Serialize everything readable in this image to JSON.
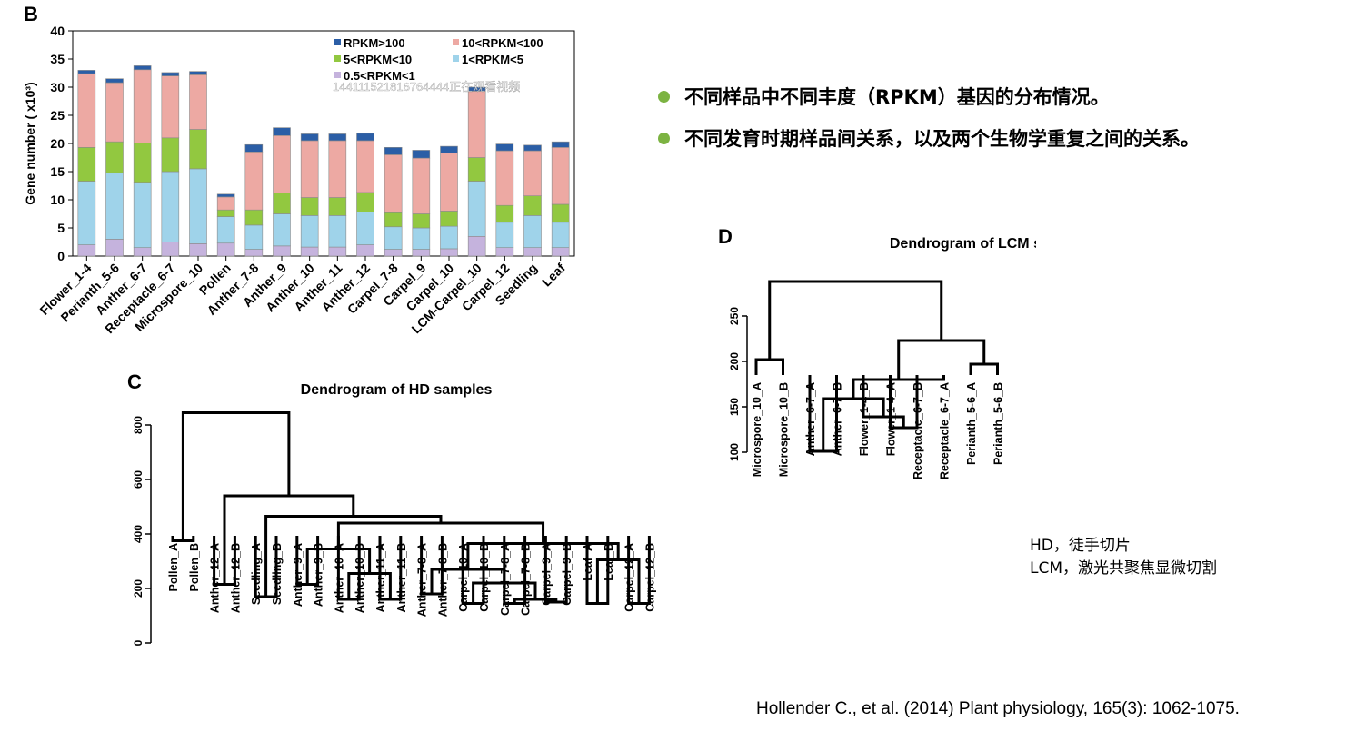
{
  "panels": {
    "b_label": "B",
    "c_label": "C",
    "d_label": "D"
  },
  "watermark": "144111521816764444正在观看视频",
  "bullets": {
    "color": "#7cb342",
    "items": [
      "不同样品中不同丰度（RPKM）基因的分布情况。",
      "不同发育时期样品间关系，以及两个生物学重复之间的关系。"
    ]
  },
  "notes": {
    "hd": "HD，徒手切片",
    "lcm": "LCM，激光共聚焦显微切割"
  },
  "citation": "Hollender C., et al. (2014) Plant physiology, 165(3): 1062-1075.",
  "chart_data": [
    {
      "type": "bar",
      "stacked": true,
      "ylabel": "Gene number ( x10³)",
      "ylim": [
        0,
        40
      ],
      "yticks": [
        0,
        5,
        10,
        15,
        20,
        25,
        30,
        35,
        40
      ],
      "categories": [
        "Flower_1-4",
        "Perianth_5-6",
        "Anther_6-7",
        "Receptacle_6-7",
        "Microspore_10",
        "Pollen",
        "Anther_7-8",
        "Anther_9",
        "Anther_10",
        "Anther_11",
        "Anther_12",
        "Carpel_7-8",
        "Carpel_9",
        "Carpel_10",
        "LCM-Carpel_10",
        "Carpel_12",
        "Seedling",
        "Leaf"
      ],
      "legend": [
        "RPKM>100",
        "10<RPKM<100",
        "5<RPKM<10",
        "1<RPKM<5",
        "0.5<RPKM<1"
      ],
      "series": [
        {
          "name": "0.5<RPKM<1",
          "color": "#c5b3dd",
          "values": [
            2.0,
            3.0,
            1.5,
            2.5,
            2.2,
            2.3,
            1.2,
            1.8,
            1.6,
            1.6,
            2.0,
            1.2,
            1.2,
            1.3,
            3.5,
            1.5,
            1.5,
            1.5
          ]
        },
        {
          "name": "1<RPKM<5",
          "color": "#9fd3ea",
          "values": [
            11.3,
            11.8,
            11.6,
            12.5,
            13.3,
            4.7,
            4.3,
            5.7,
            5.6,
            5.6,
            5.8,
            4.0,
            3.8,
            4.0,
            9.8,
            4.5,
            5.7,
            4.5
          ]
        },
        {
          "name": "5<RPKM<10",
          "color": "#92c840",
          "values": [
            6.0,
            5.5,
            7.0,
            6.0,
            7.0,
            1.2,
            2.7,
            3.7,
            3.2,
            3.2,
            3.5,
            2.5,
            2.5,
            2.7,
            4.2,
            3.0,
            3.5,
            3.2
          ]
        },
        {
          "name": "10<RPKM<100",
          "color": "#eda9a3",
          "values": [
            13.1,
            10.5,
            13.0,
            11.0,
            9.7,
            2.3,
            10.3,
            10.2,
            10.1,
            10.1,
            9.2,
            10.3,
            9.9,
            10.3,
            11.8,
            9.7,
            8.0,
            10.1
          ]
        },
        {
          "name": "RPKM>100",
          "color": "#2b5ea6",
          "values": [
            0.6,
            0.7,
            0.7,
            0.6,
            0.6,
            0.5,
            1.3,
            1.4,
            1.2,
            1.2,
            1.3,
            1.3,
            1.4,
            1.2,
            0.7,
            1.2,
            1.0,
            1.0
          ]
        }
      ]
    },
    {
      "type": "dendrogram",
      "title": "Dendrogram of HD samples",
      "ylim": [
        0,
        900
      ],
      "yticks": [
        0,
        200,
        400,
        600,
        800
      ],
      "leaves": [
        "Pollen_A",
        "Pollen_B",
        "Anther_12_A",
        "Anther_12_B",
        "Seedling_A",
        "Seedling_B",
        "Anther_9_A",
        "Anther_9_B",
        "Anther_10_A",
        "Anther_10_B",
        "Anther_11_A",
        "Anther_11_B",
        "Anther_7-8_A",
        "Anther_7-8_B",
        "Carpel_10_A",
        "Carpel_10_B",
        "Carpel_7-8_A",
        "Carpel_7-8_B",
        "Carpel_9_A",
        "Carpel_9_B",
        "Leaf_A",
        "Leaf_B",
        "Carpel_12_A",
        "Carpel_12_B"
      ],
      "merges": [
        {
          "a": [
            "L",
            0
          ],
          "b": [
            "L",
            1
          ],
          "h": 375
        },
        {
          "a": [
            "L",
            2
          ],
          "b": [
            "L",
            3
          ],
          "h": 215
        },
        {
          "a": [
            "L",
            4
          ],
          "b": [
            "L",
            5
          ],
          "h": 170
        },
        {
          "a": [
            "L",
            6
          ],
          "b": [
            "L",
            7
          ],
          "h": 215
        },
        {
          "a": [
            "L",
            8
          ],
          "b": [
            "L",
            9
          ],
          "h": 160
        },
        {
          "a": [
            "L",
            10
          ],
          "b": [
            "L",
            11
          ],
          "h": 160
        },
        {
          "a": [
            "N",
            4
          ],
          "b": [
            "N",
            5
          ],
          "h": 255
        },
        {
          "a": [
            "N",
            3
          ],
          "b": [
            "N",
            6
          ],
          "h": 345
        },
        {
          "a": [
            "L",
            12
          ],
          "b": [
            "L",
            13
          ],
          "h": 180
        },
        {
          "a": [
            "L",
            14
          ],
          "b": [
            "L",
            15
          ],
          "h": 145
        },
        {
          "a": [
            "L",
            16
          ],
          "b": [
            "L",
            17
          ],
          "h": 145
        },
        {
          "a": [
            "L",
            18
          ],
          "b": [
            "L",
            19
          ],
          "h": 150
        },
        {
          "a": [
            "N",
            10
          ],
          "b": [
            "N",
            11
          ],
          "h": 160
        },
        {
          "a": [
            "N",
            9
          ],
          "b": [
            "N",
            12
          ],
          "h": 220
        },
        {
          "a": [
            "N",
            8
          ],
          "b": [
            "N",
            13
          ],
          "h": 270
        },
        {
          "a": [
            "L",
            20
          ],
          "b": [
            "L",
            21
          ],
          "h": 145
        },
        {
          "a": [
            "L",
            22
          ],
          "b": [
            "L",
            23
          ],
          "h": 145
        },
        {
          "a": [
            "N",
            15
          ],
          "b": [
            "N",
            16
          ],
          "h": 305
        },
        {
          "a": [
            "N",
            14
          ],
          "b": [
            "N",
            17
          ],
          "h": 365
        },
        {
          "a": [
            "N",
            7
          ],
          "b": [
            "N",
            18
          ],
          "h": 440
        },
        {
          "a": [
            "N",
            2
          ],
          "b": [
            "N",
            19
          ],
          "h": 465
        },
        {
          "a": [
            "N",
            1
          ],
          "b": [
            "N",
            20
          ],
          "h": 540
        },
        {
          "a": [
            "N",
            0
          ],
          "b": [
            "N",
            21
          ],
          "h": 845
        }
      ]
    },
    {
      "type": "dendrogram",
      "title": "Dendrogram of LCM samples",
      "ylim": [
        90,
        300
      ],
      "yticks": [
        100,
        150,
        200,
        250
      ],
      "leaves": [
        "Microspore_10_A",
        "Microspore_10_B",
        "Anther_6-7_A",
        "Anther_6-7_B",
        "Flower_1-4_B",
        "Flower_1-4_A",
        "Receptacle_6-7_B",
        "Receptacle_6-7_A",
        "Perianth_5-6_A",
        "Perianth_5-6_B"
      ],
      "merges": [
        {
          "a": [
            "L",
            0
          ],
          "b": [
            "L",
            1
          ],
          "h": 202
        },
        {
          "a": [
            "L",
            2
          ],
          "b": [
            "L",
            3
          ],
          "h": 101
        },
        {
          "a": [
            "L",
            5
          ],
          "b": [
            "L",
            6
          ],
          "h": 127
        },
        {
          "a": [
            "L",
            4
          ],
          "b": [
            "N",
            2
          ],
          "h": 139
        },
        {
          "a": [
            "N",
            1
          ],
          "b": [
            "N",
            3
          ],
          "h": 159
        },
        {
          "a": [
            "N",
            4
          ],
          "b": [
            "L",
            7
          ],
          "h": 180
        },
        {
          "a": [
            "L",
            8
          ],
          "b": [
            "L",
            9
          ],
          "h": 197
        },
        {
          "a": [
            "N",
            5
          ],
          "b": [
            "N",
            6
          ],
          "h": 223
        },
        {
          "a": [
            "N",
            0
          ],
          "b": [
            "N",
            7
          ],
          "h": 288
        }
      ]
    }
  ]
}
